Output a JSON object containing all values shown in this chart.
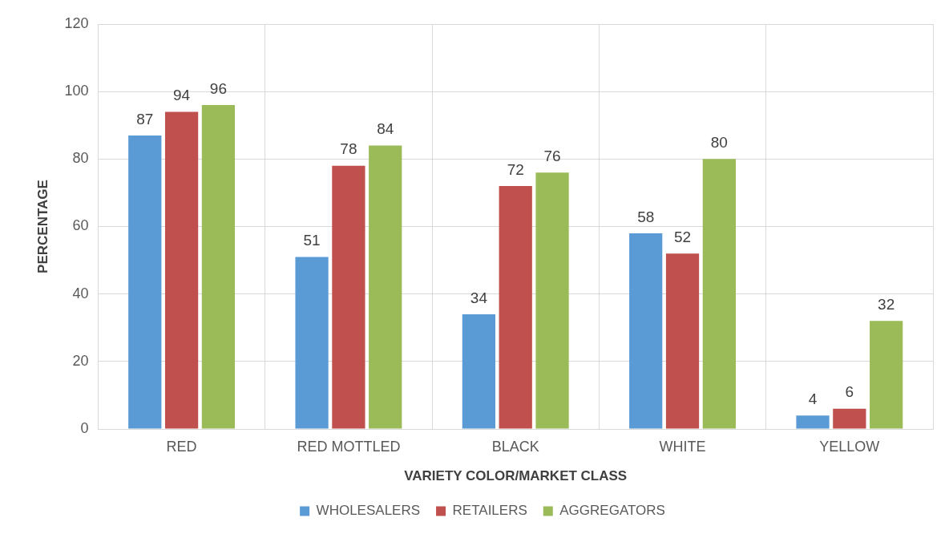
{
  "chart_data": {
    "type": "bar",
    "xlabel": "VARIETY COLOR/MARKET CLASS",
    "ylabel": "PERCENTAGE",
    "categories": [
      "RED",
      "RED MOTTLED",
      "BLACK",
      "WHITE",
      "YELLOW"
    ],
    "series": [
      {
        "name": "WHOLESALERS",
        "color": "#5b9bd5",
        "values": [
          87,
          51,
          34,
          58,
          4
        ]
      },
      {
        "name": "RETAILERS",
        "color": "#c0504d",
        "values": [
          94,
          78,
          72,
          52,
          6
        ]
      },
      {
        "name": "AGGREGATORS",
        "color": "#9bbb59",
        "values": [
          96,
          84,
          76,
          80,
          32
        ]
      }
    ],
    "ylim": [
      0,
      120
    ],
    "yticks": [
      0,
      20,
      40,
      60,
      80,
      100,
      120
    ],
    "grid": true,
    "legend": "bottom",
    "data_labels": true
  }
}
